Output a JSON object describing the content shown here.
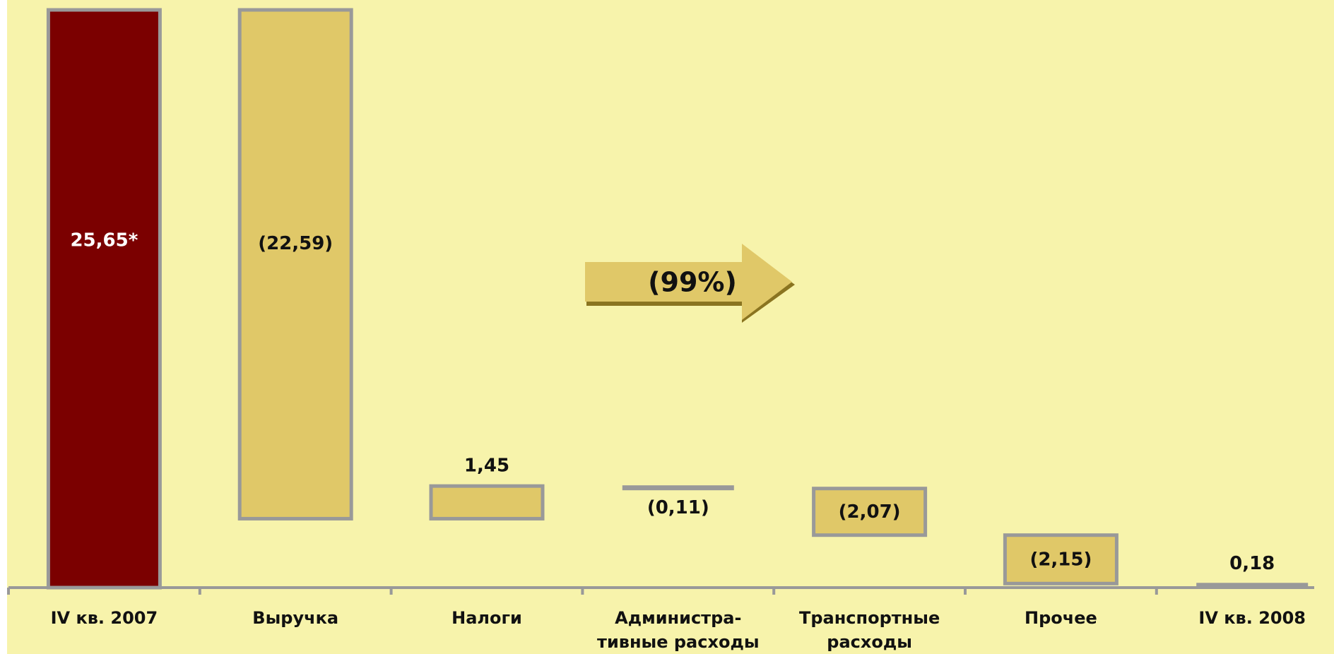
{
  "chart_data": {
    "type": "bar",
    "subtype": "waterfall",
    "categories": [
      [
        "IV кв. 2007"
      ],
      [
        "Выручка"
      ],
      [
        "Налоги"
      ],
      [
        "Администра-",
        "тивные расходы"
      ],
      [
        "Транспортные",
        "расходы"
      ],
      [
        "Прочее"
      ],
      [
        "IV кв. 2008"
      ]
    ],
    "values": [
      25.65,
      -22.59,
      1.45,
      -0.11,
      -2.07,
      -2.15,
      0.18
    ],
    "bar_kind": [
      "total",
      "delta",
      "delta",
      "delta",
      "delta",
      "delta",
      "total"
    ],
    "data_labels": [
      "25,65*",
      "(22,59)",
      "1,45",
      "(0,11)",
      "(2,07)",
      "(2,15)",
      "0,18"
    ],
    "ylim": [
      0,
      25.65
    ],
    "grid": false,
    "annotation": "(99%)"
  },
  "colors": {
    "plot_background": "#f7f3ab",
    "total_start_bar": "#7b0000",
    "delta_bar": "#e0c868",
    "total_end_bar": "#999999",
    "bar_outline": "#999999",
    "axis": "#999999",
    "arrow_fill": "#e0c868",
    "arrow_shadow": "#8a7420",
    "label_dark": "#111111",
    "label_light": "#ffffff"
  }
}
